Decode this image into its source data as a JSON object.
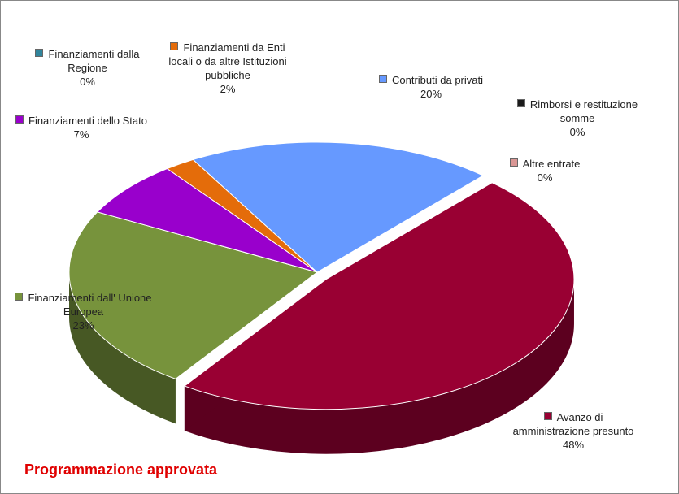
{
  "chart_data": {
    "type": "pie3d",
    "title": "Programmazione approvata",
    "categories": [
      "Avanzo di amministrazione presunto",
      "Finanziamenti dall' Unione Europea",
      "Finanziamenti dello Stato",
      "Finanziamenti dalla Regione",
      "Finanziamenti da Enti locali o da altre Istituzioni pubbliche",
      "Contributi da privati",
      "Rimborsi e restituzione somme",
      "Altre entrate"
    ],
    "values": [
      48,
      23,
      7,
      0,
      2,
      20,
      0,
      0
    ],
    "value_labels": [
      "48%",
      "23%",
      "7%",
      "0%",
      "2%",
      "20%",
      "0%",
      "0%"
    ],
    "colors": [
      "#990033",
      "#77933c",
      "#9900cc",
      "#31859c",
      "#e46c0a",
      "#6699ff",
      "#1a1a1a",
      "#d99694"
    ]
  }
}
